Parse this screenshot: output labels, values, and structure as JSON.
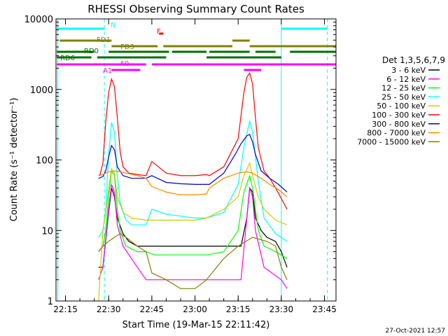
{
  "chart_data": {
    "type": "line",
    "title": "RHESSI Observing Summary Count Rates",
    "xlabel": "Start Time (19-Mar-15 22:11:42)",
    "ylabel": "Count Rate (s⁻¹ detector⁻¹)",
    "footer": "27-Oct-2021 12:57",
    "y_scale": "log",
    "ylim": [
      1,
      10000
    ],
    "xlim": [
      "22:11:42",
      "23:49:00"
    ],
    "x_ticks": [
      "22:15",
      "22:30",
      "22:45",
      "23:00",
      "23:15",
      "23:30",
      "23:45"
    ],
    "y_ticks": [
      "1",
      "10",
      "100",
      "1000",
      "10000"
    ],
    "grid": false,
    "legend": {
      "placement": "right",
      "title": "Det 1,3,5,6,7,9",
      "entries": [
        {
          "label": "3 - 6 keV",
          "color": "#000000"
        },
        {
          "label": "6 - 12 keV",
          "color": "#ff00ff"
        },
        {
          "label": "12 - 25 keV",
          "color": "#00ff00"
        },
        {
          "label": "25 - 50 keV",
          "color": "#00ffff"
        },
        {
          "label": "50 - 100 keV",
          "color": "#cccc00"
        },
        {
          "label": "100 - 300 keV",
          "color": "#ff0000"
        },
        {
          "label": "300 - 800 keV",
          "color": "#0000cc"
        },
        {
          "label": "800 - 7000 keV",
          "color": "#ff8800"
        },
        {
          "label": "7000 - 15000 keV",
          "color": "#808000"
        }
      ]
    },
    "flag_bars": [
      {
        "label": "N",
        "color": "#00ffff",
        "segments": [
          [
            "22:12",
            "22:28:30"
          ],
          [
            "23:30",
            "23:46"
          ]
        ]
      },
      {
        "label": "F",
        "color": "#ff0000",
        "segments": [
          [
            "22:47:30",
            "22:49"
          ]
        ]
      },
      {
        "label": "FD1",
        "color": "#808000",
        "segments": [
          [
            "22:13",
            "22:31"
          ],
          [
            "23:13",
            "23:19"
          ]
        ]
      },
      {
        "label": "FD3",
        "color": "#808000",
        "segments": [
          [
            "22:31",
            "22:47"
          ],
          [
            "22:49",
            "23:13"
          ],
          [
            "23:19",
            "23:49"
          ]
        ]
      },
      {
        "label": "RD0",
        "color": "#007000",
        "segments": [
          [
            "22:12",
            "22:25"
          ],
          [
            "22:30",
            "22:51"
          ],
          [
            "22:52",
            "23:04"
          ],
          [
            "23:05",
            "23:19"
          ],
          [
            "23:21",
            "23:28"
          ],
          [
            "23:33",
            "23:49"
          ]
        ]
      },
      {
        "label": "RD6",
        "color": "#007000",
        "segments": [
          [
            "22:12",
            "22:24"
          ],
          [
            "22:26",
            "22:50"
          ],
          [
            "23:04",
            "23:30"
          ]
        ]
      },
      {
        "label": "A0",
        "color": "#ff00ff",
        "segments": [
          [
            "22:12",
            "22:43"
          ],
          [
            "22:45",
            "23:49"
          ]
        ]
      },
      {
        "label": "A1",
        "color": "#ff00ff",
        "segments": [
          [
            "22:31",
            "22:41"
          ],
          [
            "23:17",
            "23:23"
          ]
        ]
      }
    ],
    "vlines": [
      {
        "x": "22:12:20",
        "color": "#00ffff",
        "style": "solid"
      },
      {
        "x": "22:28:30",
        "color": "#00ffff",
        "style": "dashed"
      },
      {
        "x": "23:30",
        "color": "#00ffff",
        "style": "solid"
      },
      {
        "x": "23:46",
        "color": "#00ffff",
        "style": "dashed"
      }
    ],
    "series": [
      {
        "name": "3 - 6 keV",
        "color": "#000000",
        "x": [
          "22:26:30",
          "22:28",
          "22:30",
          "22:31",
          "22:32",
          "22:33",
          "22:35",
          "22:37",
          "22:40",
          "22:43",
          "23:16",
          "23:18",
          "23:19",
          "23:20",
          "23:21",
          "23:23",
          "23:25",
          "23:28",
          "23:30",
          "23:32"
        ],
        "y": [
          3,
          3,
          18,
          40,
          30,
          15,
          9,
          7,
          6,
          6,
          6,
          15,
          40,
          35,
          15,
          10,
          8,
          7,
          5,
          3
        ]
      },
      {
        "name": "6 - 12 keV",
        "color": "#ff00ff",
        "x": [
          "22:26:30",
          "22:28",
          "22:30",
          "22:31",
          "22:32",
          "22:33",
          "22:35",
          "22:40",
          "22:43",
          "22:46",
          "22:50",
          "23:00",
          "23:03",
          "23:10",
          "23:16",
          "23:18",
          "23:19",
          "23:20",
          "23:21",
          "23:24",
          "23:30",
          "23:32"
        ],
        "y": [
          2,
          3,
          20,
          45,
          35,
          12,
          6,
          3,
          2,
          2,
          2,
          2,
          2,
          2,
          2,
          15,
          40,
          30,
          10,
          3,
          2,
          1.5
        ]
      },
      {
        "name": "12 - 25 keV",
        "color": "#00ff00",
        "x": [
          "22:26:30",
          "22:28",
          "22:29",
          "22:30",
          "22:31",
          "22:32",
          "22:33",
          "22:34",
          "22:36",
          "22:40",
          "22:43",
          "22:46",
          "22:50",
          "23:00",
          "23:04",
          "23:10",
          "23:15",
          "23:17",
          "23:19",
          "23:20",
          "23:22",
          "23:24",
          "23:28",
          "23:32"
        ],
        "y": [
          5,
          6,
          10,
          30,
          70,
          60,
          20,
          10,
          6,
          5,
          5,
          4.5,
          4.5,
          4.5,
          4.5,
          5,
          10,
          35,
          60,
          40,
          10,
          6,
          5,
          4
        ]
      },
      {
        "name": "25 - 50 keV",
        "color": "#00ffff",
        "x": [
          "22:26:30",
          "22:28",
          "22:29",
          "22:30",
          "22:31",
          "22:32",
          "22:33",
          "22:34",
          "22:36",
          "22:38",
          "22:43",
          "22:45",
          "22:50",
          "22:55",
          "23:00",
          "23:04",
          "23:10",
          "23:15",
          "23:17",
          "23:19",
          "23:20",
          "23:22",
          "23:24",
          "23:28",
          "23:32"
        ],
        "y": [
          8,
          10,
          20,
          120,
          340,
          250,
          60,
          25,
          14,
          12,
          12,
          20,
          17,
          16,
          15,
          15,
          18,
          45,
          150,
          360,
          250,
          50,
          15,
          9,
          7
        ]
      },
      {
        "name": "50 - 100 keV",
        "color": "#cccc00",
        "x": [
          "22:26:30",
          "22:28",
          "22:29",
          "22:30",
          "22:31",
          "22:32",
          "22:33",
          "22:35",
          "22:38",
          "22:43",
          "22:45",
          "22:50",
          "22:55",
          "23:00",
          "23:04",
          "23:10",
          "23:15",
          "23:17",
          "23:19",
          "23:20",
          "23:22",
          "23:24",
          "23:28",
          "23:32"
        ],
        "y": [
          1,
          10,
          18,
          40,
          75,
          65,
          30,
          18,
          15,
          14,
          14,
          14,
          14,
          14,
          15,
          20,
          30,
          60,
          90,
          60,
          30,
          20,
          14,
          12
        ]
      },
      {
        "name": "100 - 300 keV",
        "color": "#ff0000",
        "x": [
          "22:26:30",
          "22:27",
          "22:28",
          "22:29",
          "22:30",
          "22:31",
          "22:32",
          "22:33",
          "22:34",
          "22:35",
          "22:37",
          "22:40",
          "22:43",
          "22:45",
          "22:50",
          "22:55",
          "23:00",
          "23:04",
          "23:05",
          "23:10",
          "23:15",
          "23:17",
          "23:18",
          "23:19",
          "23:20",
          "23:21",
          "23:22",
          "23:24",
          "23:26",
          "23:28",
          "23:32"
        ],
        "y": [
          60,
          62,
          90,
          350,
          900,
          1400,
          1100,
          400,
          130,
          80,
          65,
          62,
          60,
          95,
          65,
          60,
          60,
          62,
          60,
          80,
          200,
          900,
          1500,
          1700,
          1200,
          400,
          150,
          70,
          55,
          40,
          20
        ]
      },
      {
        "name": "300 - 800 keV",
        "color": "#0000cc",
        "x": [
          "22:26:30",
          "22:28",
          "22:29",
          "22:30",
          "22:31",
          "22:32",
          "22:33",
          "22:35",
          "22:38",
          "22:43",
          "22:45",
          "22:50",
          "22:55",
          "23:00",
          "23:04",
          "23:05",
          "23:10",
          "23:14",
          "23:16",
          "23:18",
          "23:19",
          "23:20",
          "23:21",
          "23:23",
          "23:26",
          "23:29",
          "23:32"
        ],
        "y": [
          55,
          58,
          70,
          110,
          160,
          140,
          80,
          60,
          55,
          55,
          60,
          48,
          46,
          45,
          45,
          45,
          65,
          120,
          170,
          220,
          230,
          180,
          120,
          70,
          55,
          45,
          35
        ]
      },
      {
        "name": "800 - 7000 keV",
        "color": "#ff8800",
        "x": [
          "22:26:30",
          "22:28",
          "22:30",
          "22:32",
          "22:34",
          "22:36",
          "22:40",
          "22:43",
          "22:45",
          "22:50",
          "22:55",
          "23:00",
          "23:04",
          "23:05",
          "23:10",
          "23:15",
          "23:18",
          "23:20",
          "23:23",
          "23:26",
          "23:29",
          "23:32"
        ],
        "y": [
          60,
          62,
          68,
          70,
          68,
          65,
          60,
          55,
          42,
          35,
          32,
          32,
          33,
          40,
          55,
          65,
          68,
          65,
          55,
          45,
          38,
          30
        ]
      },
      {
        "name": "7000 - 15000 keV",
        "color": "#808000",
        "x": [
          "22:26:30",
          "22:28",
          "22:30",
          "22:32",
          "22:34",
          "22:36",
          "22:40",
          "22:43",
          "22:45",
          "22:50",
          "22:55",
          "23:00",
          "23:04",
          "23:10",
          "23:15",
          "23:20",
          "23:25",
          "23:28",
          "23:30",
          "23:32"
        ],
        "y": [
          5,
          6,
          7,
          8,
          9,
          8,
          6,
          5,
          2.5,
          2,
          1.5,
          1.5,
          2,
          4,
          6,
          8,
          7,
          6,
          3,
          2
        ]
      }
    ]
  }
}
